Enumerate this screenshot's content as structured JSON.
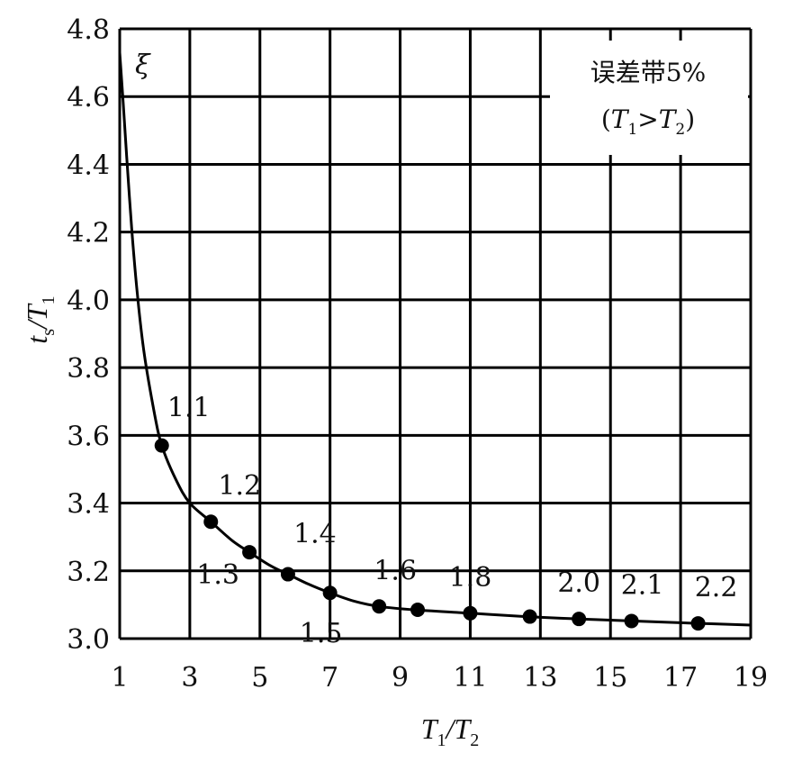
{
  "chart_data": {
    "type": "line",
    "xlabel": "T1/T2",
    "ylabel": "ts/T1",
    "xlim": [
      1,
      19
    ],
    "ylim": [
      3.0,
      4.8
    ],
    "x_ticks": [
      "1",
      "3",
      "5",
      "7",
      "9",
      "11",
      "13",
      "15",
      "17",
      "19"
    ],
    "y_ticks": [
      "3.0",
      "3.2",
      "3.4",
      "3.6",
      "3.8",
      "4.0",
      "4.2",
      "4.4",
      "4.6",
      "4.8"
    ],
    "grid": true,
    "series": [
      {
        "name": "ξ",
        "curve": [
          {
            "x": 1.0,
            "y": 4.73
          },
          {
            "x": 1.1,
            "y": 4.58
          },
          {
            "x": 1.2,
            "y": 4.42
          },
          {
            "x": 1.35,
            "y": 4.2
          },
          {
            "x": 1.5,
            "y": 4.02
          },
          {
            "x": 1.7,
            "y": 3.84
          },
          {
            "x": 2.0,
            "y": 3.66
          },
          {
            "x": 2.2,
            "y": 3.57
          },
          {
            "x": 2.6,
            "y": 3.47
          },
          {
            "x": 3.0,
            "y": 3.4
          },
          {
            "x": 3.6,
            "y": 3.345
          },
          {
            "x": 4.2,
            "y": 3.29
          },
          {
            "x": 4.7,
            "y": 3.255
          },
          {
            "x": 5.3,
            "y": 3.215
          },
          {
            "x": 5.8,
            "y": 3.19
          },
          {
            "x": 6.4,
            "y": 3.16
          },
          {
            "x": 7.0,
            "y": 3.135
          },
          {
            "x": 7.7,
            "y": 3.11
          },
          {
            "x": 8.4,
            "y": 3.095
          },
          {
            "x": 9.4,
            "y": 3.085
          },
          {
            "x": 11.0,
            "y": 3.075
          },
          {
            "x": 12.6,
            "y": 3.065
          },
          {
            "x": 14.1,
            "y": 3.058
          },
          {
            "x": 15.6,
            "y": 3.052
          },
          {
            "x": 17.5,
            "y": 3.045
          },
          {
            "x": 19.0,
            "y": 3.04
          }
        ],
        "points": [
          {
            "x": 2.2,
            "y": 3.57,
            "label": "1.1"
          },
          {
            "x": 3.6,
            "y": 3.345,
            "label": "1.2"
          },
          {
            "x": 4.7,
            "y": 3.255,
            "label": "1.3"
          },
          {
            "x": 5.8,
            "y": 3.19,
            "label": "1.4"
          },
          {
            "x": 7.0,
            "y": 3.135,
            "label": "1.5"
          },
          {
            "x": 8.4,
            "y": 3.095,
            "label": "1.6"
          },
          {
            "x": 9.5,
            "y": 3.085,
            "label": ""
          },
          {
            "x": 11.0,
            "y": 3.075,
            "label": "1.8"
          },
          {
            "x": 12.7,
            "y": 3.065,
            "label": ""
          },
          {
            "x": 14.1,
            "y": 3.058,
            "label": "2.0"
          },
          {
            "x": 15.6,
            "y": 3.052,
            "label": "2.1"
          },
          {
            "x": 17.5,
            "y": 3.045,
            "label": "2.2"
          }
        ]
      }
    ],
    "annotation": {
      "line1": "误差带5%",
      "line2": "(T1>T2)"
    }
  }
}
